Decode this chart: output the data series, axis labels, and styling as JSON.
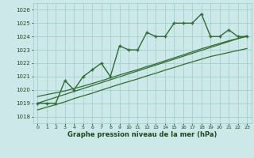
{
  "x": [
    0,
    1,
    2,
    3,
    4,
    5,
    6,
    7,
    8,
    9,
    10,
    11,
    12,
    13,
    14,
    15,
    16,
    17,
    18,
    19,
    20,
    21,
    22,
    23
  ],
  "y": [
    1019,
    1019,
    1019,
    1020.7,
    1020,
    1021,
    1021.5,
    1022,
    1021,
    1023.3,
    1023,
    1023,
    1024.3,
    1024,
    1024,
    1025,
    1025,
    1025,
    1025.7,
    1024,
    1024,
    1024.5,
    1024,
    1024
  ],
  "y_low": [
    1018.5,
    1018.7,
    1018.9,
    1019.1,
    1019.35,
    1019.55,
    1019.75,
    1019.98,
    1020.2,
    1020.42,
    1020.62,
    1020.82,
    1021.05,
    1021.25,
    1021.48,
    1021.68,
    1021.9,
    1022.1,
    1022.3,
    1022.5,
    1022.65,
    1022.8,
    1022.95,
    1023.1
  ],
  "y_mid": [
    1019.0,
    1019.22,
    1019.44,
    1019.66,
    1019.88,
    1020.1,
    1020.32,
    1020.54,
    1020.76,
    1020.98,
    1021.2,
    1021.42,
    1021.64,
    1021.86,
    1022.08,
    1022.3,
    1022.52,
    1022.74,
    1022.96,
    1023.18,
    1023.4,
    1023.62,
    1023.84,
    1024.06
  ],
  "y_high": [
    1019.5,
    1019.65,
    1019.78,
    1019.92,
    1020.1,
    1020.28,
    1020.48,
    1020.68,
    1020.9,
    1021.12,
    1021.32,
    1021.52,
    1021.75,
    1021.95,
    1022.18,
    1022.4,
    1022.62,
    1022.85,
    1023.08,
    1023.28,
    1023.48,
    1023.68,
    1023.85,
    1024.0
  ],
  "ylim": [
    1017.5,
    1026.5
  ],
  "yticks": [
    1018,
    1019,
    1020,
    1021,
    1022,
    1023,
    1024,
    1025,
    1026
  ],
  "xlabel": "Graphe pression niveau de la mer (hPa)",
  "line_color": "#2d6e2d",
  "bg_color": "#cce8e8",
  "grid_color": "#99cccc",
  "tick_color": "#1a4a1a"
}
